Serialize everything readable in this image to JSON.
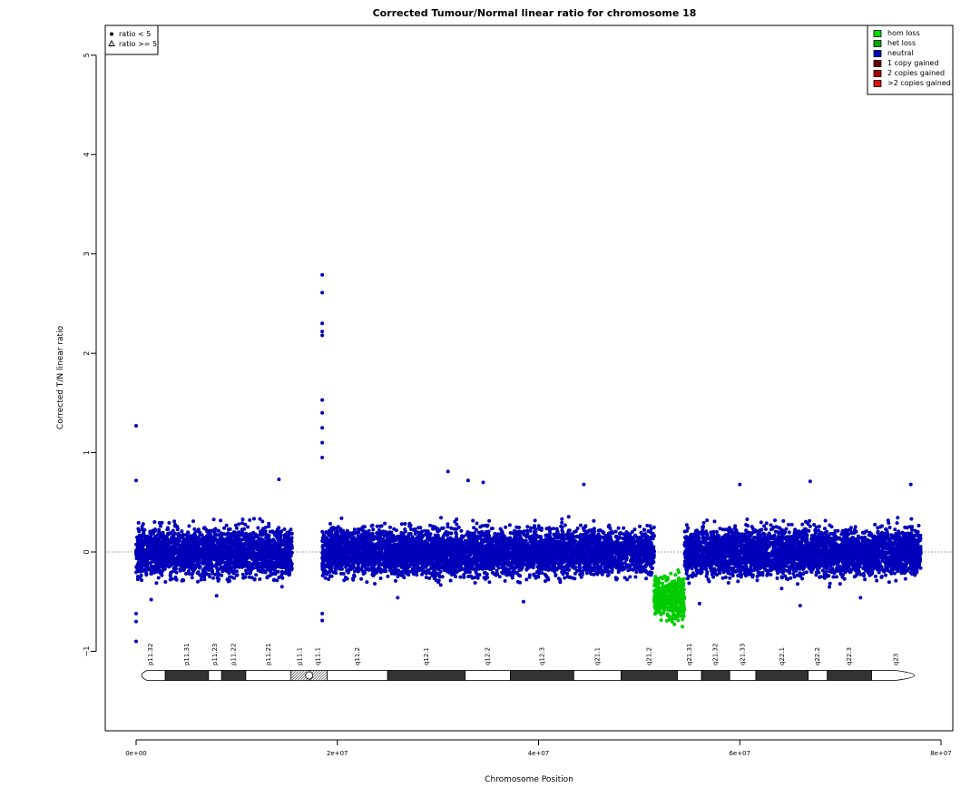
{
  "chart_data": {
    "type": "scatter",
    "title": "Corrected Tumour/Normal linear ratio for chromosome  18",
    "xlabel": "Chromosome Position",
    "ylabel": "Corrected T/N linear ratio",
    "xlim": [
      0,
      80000000
    ],
    "ylim": [
      -1.8,
      5.3
    ],
    "x_ticks": [
      {
        "value": 0,
        "label": "0e+00"
      },
      {
        "value": 20000000,
        "label": "2e+07"
      },
      {
        "value": 40000000,
        "label": "4e+07"
      },
      {
        "value": 60000000,
        "label": "6e+07"
      },
      {
        "value": 80000000,
        "label": "8e+07"
      }
    ],
    "y_ticks": [
      {
        "value": -1,
        "label": "−1"
      },
      {
        "value": 0,
        "label": "0"
      },
      {
        "value": 1,
        "label": "1"
      },
      {
        "value": 2,
        "label": "2"
      },
      {
        "value": 3,
        "label": "3"
      },
      {
        "value": 4,
        "label": "4"
      },
      {
        "value": 5,
        "label": "5"
      }
    ],
    "reference_line": 0,
    "symbol_legend": [
      {
        "symbol": "dot",
        "label": "ratio < 5"
      },
      {
        "symbol": "triangle",
        "label": "ratio >= 5"
      }
    ],
    "legend_position": "top-right",
    "legend": [
      {
        "label": "hom loss",
        "color": "#00dd00"
      },
      {
        "label": "het loss",
        "color": "#00aa00"
      },
      {
        "label": "neutral",
        "color": "#0000bb"
      },
      {
        "label": "1 copy gained",
        "color": "#660000"
      },
      {
        "label": "2 copies gained",
        "color": "#aa0000"
      },
      {
        "label": ">2 copies gained",
        "color": "#dd1111"
      }
    ],
    "series": [
      {
        "name": "neutral",
        "color": "#0000bb",
        "segments": [
          {
            "x_start": 0,
            "x_end": 15500000,
            "center": 0.0,
            "spread": 0.3
          },
          {
            "x_start": 18500000,
            "x_end": 51500000,
            "center": 0.0,
            "spread": 0.3
          },
          {
            "x_start": 54500000,
            "x_end": 78000000,
            "center": 0.0,
            "spread": 0.3
          }
        ],
        "outliers": [
          [
            0,
            1.27
          ],
          [
            0,
            -0.9
          ],
          [
            0,
            0.72
          ],
          [
            0,
            -0.7
          ],
          [
            0,
            -0.62
          ],
          [
            18500000,
            2.79
          ],
          [
            18500000,
            2.61
          ],
          [
            18500000,
            2.3
          ],
          [
            18500000,
            2.22
          ],
          [
            18500000,
            2.18
          ],
          [
            18500000,
            1.53
          ],
          [
            18500000,
            1.4
          ],
          [
            18500000,
            1.25
          ],
          [
            18500000,
            1.1
          ],
          [
            18500000,
            0.95
          ],
          [
            18500000,
            -0.69
          ],
          [
            18500000,
            -0.62
          ],
          [
            14200000,
            0.73
          ],
          [
            31000000,
            0.81
          ],
          [
            33000000,
            0.72
          ],
          [
            34500000,
            0.7
          ],
          [
            44500000,
            0.68
          ],
          [
            60000000,
            0.68
          ],
          [
            67000000,
            0.71
          ],
          [
            77000000,
            0.68
          ],
          [
            1500000,
            -0.48
          ],
          [
            8000000,
            -0.44
          ],
          [
            26000000,
            -0.46
          ],
          [
            38500000,
            -0.5
          ],
          [
            56000000,
            -0.52
          ],
          [
            66000000,
            -0.54
          ],
          [
            72000000,
            -0.46
          ]
        ]
      },
      {
        "name": "hom loss",
        "color": "#00cc00",
        "segments": [
          {
            "x_start": 51500000,
            "x_end": 54500000,
            "center": -0.46,
            "spread": 0.25
          }
        ],
        "outliers": []
      }
    ],
    "ideogram": {
      "bands": [
        {
          "name": "p11.32",
          "start": 0,
          "end": 2900000,
          "stain": "gneg"
        },
        {
          "name": "p11.31",
          "start": 2900000,
          "end": 7200000,
          "stain": "gpos"
        },
        {
          "name": "p11.23",
          "start": 7200000,
          "end": 8500000,
          "stain": "gneg"
        },
        {
          "name": "p11.22",
          "start": 8500000,
          "end": 10900000,
          "stain": "gpos"
        },
        {
          "name": "p11.21",
          "start": 10900000,
          "end": 15400000,
          "stain": "gneg"
        },
        {
          "name": "p11.1",
          "start": 15400000,
          "end": 17200000,
          "stain": "acen"
        },
        {
          "name": "q11.1",
          "start": 17200000,
          "end": 19000000,
          "stain": "acen"
        },
        {
          "name": "q11.2",
          "start": 19000000,
          "end": 25000000,
          "stain": "gneg"
        },
        {
          "name": "q12.1",
          "start": 25000000,
          "end": 32700000,
          "stain": "gpos"
        },
        {
          "name": "q12.2",
          "start": 32700000,
          "end": 37200000,
          "stain": "gneg"
        },
        {
          "name": "q12.3",
          "start": 37200000,
          "end": 43500000,
          "stain": "gpos"
        },
        {
          "name": "q21.1",
          "start": 43500000,
          "end": 48200000,
          "stain": "gneg"
        },
        {
          "name": "q21.2",
          "start": 48200000,
          "end": 53800000,
          "stain": "gpos"
        },
        {
          "name": "q21.31",
          "start": 53800000,
          "end": 56200000,
          "stain": "gneg"
        },
        {
          "name": "q21.32",
          "start": 56200000,
          "end": 59000000,
          "stain": "gpos"
        },
        {
          "name": "q21.33",
          "start": 59000000,
          "end": 61600000,
          "stain": "gneg"
        },
        {
          "name": "q22.1",
          "start": 61600000,
          "end": 66800000,
          "stain": "gpos"
        },
        {
          "name": "q22.2",
          "start": 66800000,
          "end": 68700000,
          "stain": "gneg"
        },
        {
          "name": "q22.3",
          "start": 68700000,
          "end": 73100000,
          "stain": "gpos"
        },
        {
          "name": "q23",
          "start": 73100000,
          "end": 78000000,
          "stain": "gneg"
        }
      ]
    }
  }
}
